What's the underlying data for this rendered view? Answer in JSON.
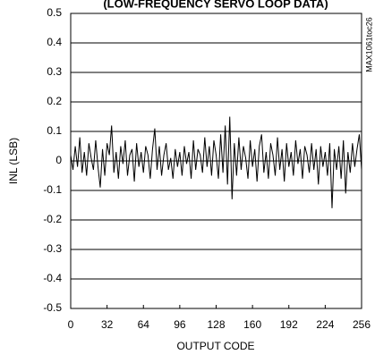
{
  "chart_data": {
    "type": "line",
    "title": "(LOW-FREQUENCY SERVO LOOP DATA)",
    "ylabel": "INL (LSB)",
    "xlabel": "OUTPUT CODE",
    "note": "MAX1061toc26",
    "x": [
      0,
      2,
      4,
      6,
      8,
      10,
      12,
      14,
      16,
      18,
      20,
      22,
      24,
      26,
      28,
      30,
      32,
      34,
      36,
      38,
      40,
      42,
      44,
      46,
      48,
      50,
      52,
      54,
      56,
      58,
      60,
      62,
      64,
      66,
      68,
      70,
      72,
      74,
      76,
      78,
      80,
      82,
      84,
      86,
      88,
      90,
      92,
      94,
      96,
      98,
      100,
      102,
      104,
      106,
      108,
      110,
      112,
      114,
      116,
      118,
      120,
      122,
      124,
      126,
      128,
      130,
      132,
      134,
      136,
      138,
      140,
      142,
      144,
      146,
      148,
      150,
      152,
      154,
      156,
      158,
      160,
      162,
      164,
      166,
      168,
      170,
      172,
      174,
      176,
      178,
      180,
      182,
      184,
      186,
      188,
      190,
      192,
      194,
      196,
      198,
      200,
      202,
      204,
      206,
      208,
      210,
      212,
      214,
      216,
      218,
      220,
      222,
      224,
      226,
      228,
      230,
      232,
      234,
      236,
      238,
      240,
      242,
      244,
      246,
      248,
      250,
      252,
      254,
      256
    ],
    "series": [
      {
        "name": "INL",
        "color": "#000000",
        "values": [
          0.02,
          -0.03,
          0.05,
          -0.02,
          0.08,
          -0.04,
          0.03,
          -0.05,
          0.06,
          0.01,
          -0.03,
          0.07,
          -0.02,
          -0.09,
          0.04,
          -0.05,
          0.06,
          0.02,
          0.12,
          -0.04,
          0.03,
          -0.06,
          0.05,
          -0.01,
          0.07,
          -0.05,
          0.02,
          0.04,
          -0.07,
          0.06,
          -0.02,
          0.03,
          -0.04,
          0.05,
          0.02,
          -0.06,
          0.04,
          0.11,
          -0.03,
          0.05,
          -0.05,
          0.02,
          0.06,
          -0.03,
          0.01,
          -0.06,
          0.04,
          -0.02,
          0.03,
          -0.05,
          0.05,
          -0.01,
          0.03,
          -0.06,
          0.07,
          -0.03,
          0.04,
          0.02,
          -0.04,
          0.08,
          -0.02,
          0.05,
          -0.05,
          0.07,
          0.02,
          -0.06,
          0.09,
          -0.04,
          0.12,
          -0.08,
          0.15,
          -0.13,
          0.06,
          -0.05,
          0.08,
          -0.03,
          0.05,
          0.01,
          -0.06,
          0.07,
          -0.02,
          0.04,
          -0.07,
          0.05,
          0.09,
          -0.04,
          0.03,
          -0.06,
          0.06,
          0.02,
          -0.05,
          0.08,
          -0.03,
          0.04,
          -0.07,
          0.06,
          -0.02,
          0.03,
          -0.05,
          0.07,
          -0.01,
          0.04,
          -0.06,
          0.05,
          0.02,
          -0.04,
          0.06,
          -0.03,
          0.04,
          -0.08,
          0.05,
          -0.02,
          0.03,
          -0.05,
          0.06,
          -0.16,
          0.04,
          -0.03,
          0.05,
          -0.06,
          0.07,
          -0.11,
          0.03,
          -0.04,
          0.06,
          -0.02,
          0.04,
          0.09,
          -0.03
        ]
      }
    ],
    "xlim": [
      0,
      256
    ],
    "xticks": [
      0,
      32,
      64,
      96,
      128,
      160,
      192,
      224,
      256
    ],
    "ylim": [
      -0.5,
      0.5
    ],
    "yticks": [
      0.5,
      0.4,
      0.3,
      0.2,
      0.1,
      0,
      -0.1,
      -0.2,
      -0.3,
      -0.4,
      -0.5
    ],
    "grid": true
  }
}
